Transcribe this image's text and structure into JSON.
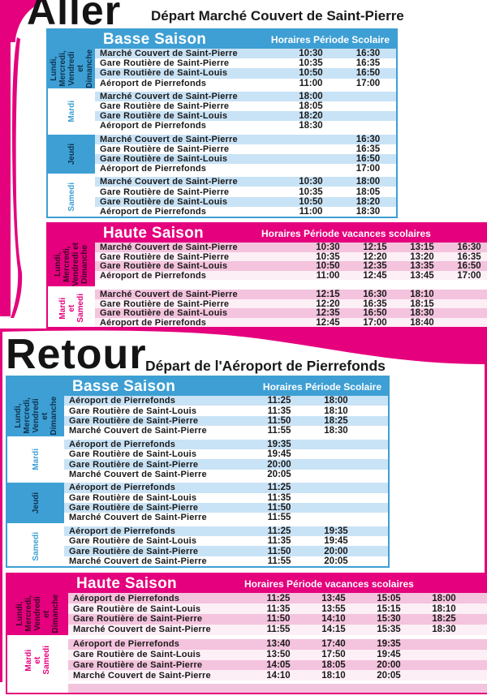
{
  "colors": {
    "season_blue": "#3E9FD4",
    "row_blue_light": "#C9E3F6",
    "season_magenta": "#E5007D",
    "row_pink_light": "#F4C3DD",
    "text_dark": "#1A1A1A"
  },
  "panels": [
    {
      "title": "Aller",
      "subtitle": "Départ Marché Couvert de Saint-Pierre",
      "tables": [
        {
          "season": "Basse Saison",
          "period": "Horaires Période Scolaire",
          "theme": "blue",
          "groups": [
            {
              "days": [
                "Lundi,",
                "Mercredi,",
                "Vendredi et",
                "Dimanche"
              ],
              "filled": true,
              "rows": [
                {
                  "stop": "Marché Couvert de Saint-Pierre",
                  "times": [
                    "10:30",
                    "16:30"
                  ]
                },
                {
                  "stop": "Gare Routière de Saint-Pierre",
                  "times": [
                    "10:35",
                    "16:35"
                  ]
                },
                {
                  "stop": "Gare Routière de Saint-Louis",
                  "times": [
                    "10:50",
                    "16:50"
                  ]
                },
                {
                  "stop": "Aéroport de Pierrefonds",
                  "times": [
                    "11:00",
                    "17:00"
                  ]
                }
              ]
            },
            {
              "days": [
                "Mardi"
              ],
              "filled": false,
              "rows": [
                {
                  "stop": "Marché Couvert de Saint-Pierre",
                  "times": [
                    "18:00",
                    ""
                  ]
                },
                {
                  "stop": "Gare Routière de Saint-Pierre",
                  "times": [
                    "18:05",
                    ""
                  ]
                },
                {
                  "stop": "Gare Routière de Saint-Louis",
                  "times": [
                    "18:20",
                    ""
                  ]
                },
                {
                  "stop": "Aéroport de Pierrefonds",
                  "times": [
                    "18:30",
                    ""
                  ]
                }
              ]
            },
            {
              "days": [
                "Jeudi"
              ],
              "filled": true,
              "rows": [
                {
                  "stop": "Marché Couvert de Saint-Pierre",
                  "times": [
                    "",
                    "16:30"
                  ]
                },
                {
                  "stop": "Gare Routière de Saint-Pierre",
                  "times": [
                    "",
                    "16:35"
                  ]
                },
                {
                  "stop": "Gare Routière de Saint-Louis",
                  "times": [
                    "",
                    "16:50"
                  ]
                },
                {
                  "stop": "Aéroport de Pierrefonds",
                  "times": [
                    "",
                    "17:00"
                  ]
                }
              ]
            },
            {
              "days": [
                "Samedi"
              ],
              "filled": false,
              "rows": [
                {
                  "stop": "Marché Couvert de Saint-Pierre",
                  "times": [
                    "10:30",
                    "18:00"
                  ]
                },
                {
                  "stop": "Gare Routière de Saint-Pierre",
                  "times": [
                    "10:35",
                    "18:05"
                  ]
                },
                {
                  "stop": "Gare Routière de Saint-Louis",
                  "times": [
                    "10:50",
                    "18:20"
                  ]
                },
                {
                  "stop": "Aéroport de Pierrefonds",
                  "times": [
                    "11:00",
                    "18:30"
                  ]
                }
              ]
            }
          ]
        },
        {
          "season": "Haute Saison",
          "period": "Horaires Période vacances scolaires",
          "theme": "pink",
          "groups": [
            {
              "days": [
                "Lundi,",
                "Mercredi,",
                "Vendredi et",
                "Dimanche"
              ],
              "filled": true,
              "rows": [
                {
                  "stop": "Marché Couvert de Saint-Pierre",
                  "times": [
                    "10:30",
                    "12:15",
                    "13:15",
                    "16:30"
                  ]
                },
                {
                  "stop": "Gare Routière de Saint-Pierre",
                  "times": [
                    "10:35",
                    "12:20",
                    "13:20",
                    "16:35"
                  ]
                },
                {
                  "stop": "Gare Routière de Saint-Louis",
                  "times": [
                    "10:50",
                    "12:35",
                    "13:35",
                    "16:50"
                  ]
                },
                {
                  "stop": "Aéroport de Pierrefonds",
                  "times": [
                    "11:00",
                    "12:45",
                    "13:45",
                    "17:00"
                  ]
                }
              ]
            },
            {
              "days": [
                "Mardi",
                "et",
                "Samedi"
              ],
              "filled": false,
              "rows": [
                {
                  "stop": "Marché Couvert de Saint-Pierre",
                  "times": [
                    "12:15",
                    "16:30",
                    "18:10",
                    ""
                  ]
                },
                {
                  "stop": "Gare Routière de Saint-Pierre",
                  "times": [
                    "12:20",
                    "16:35",
                    "18:15",
                    ""
                  ]
                },
                {
                  "stop": "Gare Routière de Saint-Louis",
                  "times": [
                    "12:35",
                    "16:50",
                    "18:30",
                    ""
                  ]
                },
                {
                  "stop": "Aéroport de Pierrefonds",
                  "times": [
                    "12:45",
                    "17:00",
                    "18:40",
                    ""
                  ]
                }
              ]
            }
          ]
        }
      ]
    },
    {
      "title": "Retour",
      "subtitle": "Départ de l'Aéroport de Pierrefonds",
      "tables": [
        {
          "season": "Basse Saison",
          "period": "Horaires Période Scolaire",
          "theme": "blue",
          "groups": [
            {
              "days": [
                "Lundi,",
                "Mercredi,",
                "Vendredi et",
                "Dimanche"
              ],
              "filled": true,
              "rows": [
                {
                  "stop": "Aéroport de Pierrefonds",
                  "times": [
                    "11:25",
                    "18:00"
                  ]
                },
                {
                  "stop": "Gare Routière de Saint-Louis",
                  "times": [
                    "11:35",
                    "18:10"
                  ]
                },
                {
                  "stop": "Gare Routière de Saint-Pierre",
                  "times": [
                    "11:50",
                    "18:25"
                  ]
                },
                {
                  "stop": "Marché Couvert de Saint-Pierre",
                  "times": [
                    "11:55",
                    "18:30"
                  ]
                }
              ]
            },
            {
              "days": [
                "Mardi"
              ],
              "filled": false,
              "rows": [
                {
                  "stop": "Aéroport de Pierrefonds",
                  "times": [
                    "19:35",
                    ""
                  ]
                },
                {
                  "stop": "Gare Routière de Saint-Louis",
                  "times": [
                    "19:45",
                    ""
                  ]
                },
                {
                  "stop": "Gare Routière de Saint-Pierre",
                  "times": [
                    "20:00",
                    ""
                  ]
                },
                {
                  "stop": "Marché Couvert de Saint-Pierre",
                  "times": [
                    "20:05",
                    ""
                  ]
                }
              ]
            },
            {
              "days": [
                "Jeudi"
              ],
              "filled": true,
              "rows": [
                {
                  "stop": "Aéroport de Pierrefonds",
                  "times": [
                    "11:25",
                    ""
                  ]
                },
                {
                  "stop": "Gare Routière de Saint-Louis",
                  "times": [
                    "11:35",
                    ""
                  ]
                },
                {
                  "stop": "Gare Routière de Saint-Pierre",
                  "times": [
                    "11:50",
                    ""
                  ]
                },
                {
                  "stop": "Marché Couvert de Saint-Pierre",
                  "times": [
                    "11:55",
                    ""
                  ]
                }
              ]
            },
            {
              "days": [
                "Samedi"
              ],
              "filled": false,
              "rows": [
                {
                  "stop": "Aéroport de Pierrefonds",
                  "times": [
                    "11:25",
                    "19:35"
                  ]
                },
                {
                  "stop": "Gare Routière de Saint-Louis",
                  "times": [
                    "11:35",
                    "19:45"
                  ]
                },
                {
                  "stop": "Gare Routière de Saint-Pierre",
                  "times": [
                    "11:50",
                    "20:00"
                  ]
                },
                {
                  "stop": "Marché Couvert de Saint-Pierre",
                  "times": [
                    "11:55",
                    "20:05"
                  ]
                }
              ]
            }
          ]
        },
        {
          "season": "Haute Saison",
          "period": "Horaires Période vacances scolaires",
          "theme": "pink",
          "groups": [
            {
              "days": [
                "Lundi,",
                "Mercredi,",
                "Vendredi et",
                "Dimanche"
              ],
              "filled": true,
              "rows": [
                {
                  "stop": "Aéroport de Pierrefonds",
                  "times": [
                    "11:25",
                    "13:45",
                    "15:05",
                    "18:00"
                  ]
                },
                {
                  "stop": "Gare Routière de Saint-Louis",
                  "times": [
                    "11:35",
                    "13:55",
                    "15:15",
                    "18:10"
                  ]
                },
                {
                  "stop": "Gare Routière de Saint-Pierre",
                  "times": [
                    "11:50",
                    "14:10",
                    "15:30",
                    "18:25"
                  ]
                },
                {
                  "stop": "Marché Couvert de Saint-Pierre",
                  "times": [
                    "11:55",
                    "14:15",
                    "15:35",
                    "18:30"
                  ]
                }
              ]
            },
            {
              "days": [
                "Mardi",
                "et",
                "Samedi"
              ],
              "filled": false,
              "rows": [
                {
                  "stop": "Aéroport de Pierrefonds",
                  "times": [
                    "13:40",
                    "17:40",
                    "19:35",
                    ""
                  ]
                },
                {
                  "stop": "Gare Routière de Saint-Louis",
                  "times": [
                    "13:50",
                    "17:50",
                    "19:45",
                    ""
                  ]
                },
                {
                  "stop": "Gare Routière de Saint-Pierre",
                  "times": [
                    "14:05",
                    "18:05",
                    "20:00",
                    ""
                  ]
                },
                {
                  "stop": "Marché Couvert de Saint-Pierre",
                  "times": [
                    "14:10",
                    "18:10",
                    "20:05",
                    ""
                  ]
                }
              ]
            }
          ]
        }
      ]
    }
  ]
}
